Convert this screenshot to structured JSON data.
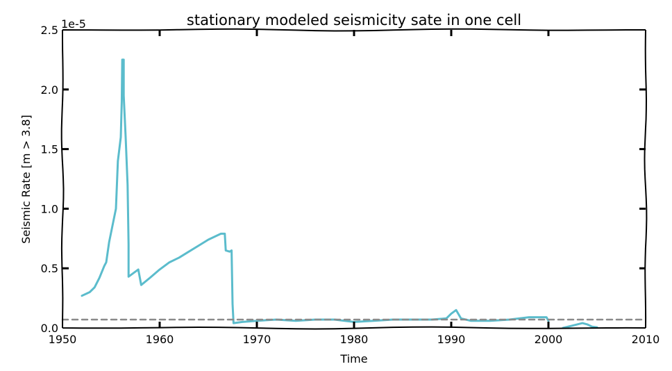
{
  "chart_data": {
    "type": "line",
    "title": "stationary modeled seismicity sate in one cell",
    "xlabel": "Time",
    "ylabel": "Seismic Rate [m > 3.8]",
    "y_offset_label": "1e-5",
    "xlim": [
      1950,
      2010
    ],
    "ylim": [
      0.0,
      2.5
    ],
    "x_ticks": [
      1950,
      1960,
      1970,
      1980,
      1990,
      2000,
      2010
    ],
    "y_ticks": [
      0.0,
      0.5,
      1.0,
      1.5,
      2.0,
      2.5
    ],
    "y_tick_labels": [
      "0.0",
      "0.5",
      "1.0",
      "1.5",
      "2.0",
      "2.5"
    ],
    "grid": false,
    "legend": "none",
    "series": [
      {
        "style": "solid",
        "color": "#5bbccc",
        "points": [
          [
            1952.0,
            0.27
          ],
          [
            1952.8,
            0.3
          ],
          [
            1953.3,
            0.34
          ],
          [
            1953.8,
            0.42
          ],
          [
            1954.3,
            0.52
          ],
          [
            1954.5,
            0.55
          ],
          [
            1954.8,
            0.72
          ],
          [
            1955.2,
            0.88
          ],
          [
            1955.5,
            1.0
          ],
          [
            1955.7,
            1.4
          ],
          [
            1956.0,
            1.6
          ],
          [
            1956.1,
            1.9
          ],
          [
            1956.15,
            2.25
          ],
          [
            1956.3,
            2.25
          ],
          [
            1956.3,
            1.95
          ],
          [
            1956.5,
            1.6
          ],
          [
            1956.7,
            1.2
          ],
          [
            1956.8,
            0.7
          ],
          [
            1956.8,
            0.43
          ],
          [
            1957.3,
            0.46
          ],
          [
            1957.8,
            0.49
          ],
          [
            1958.1,
            0.36
          ],
          [
            1959.0,
            0.42
          ],
          [
            1960.0,
            0.49
          ],
          [
            1961.0,
            0.55
          ],
          [
            1962.0,
            0.59
          ],
          [
            1963.0,
            0.64
          ],
          [
            1964.0,
            0.69
          ],
          [
            1965.0,
            0.74
          ],
          [
            1966.3,
            0.79
          ],
          [
            1966.7,
            0.79
          ],
          [
            1966.8,
            0.65
          ],
          [
            1967.2,
            0.64
          ],
          [
            1967.4,
            0.65
          ],
          [
            1967.5,
            0.2
          ],
          [
            1967.6,
            0.04
          ],
          [
            1968.5,
            0.05
          ],
          [
            1970.0,
            0.06
          ],
          [
            1972.0,
            0.07
          ],
          [
            1974.0,
            0.06
          ],
          [
            1976.0,
            0.07
          ],
          [
            1978.0,
            0.07
          ],
          [
            1980.0,
            0.05
          ],
          [
            1982.0,
            0.06
          ],
          [
            1984.0,
            0.07
          ],
          [
            1986.0,
            0.07
          ],
          [
            1988.0,
            0.07
          ],
          [
            1989.5,
            0.08
          ],
          [
            1990.0,
            0.12
          ],
          [
            1990.5,
            0.15
          ],
          [
            1991.0,
            0.08
          ],
          [
            1992.0,
            0.06
          ],
          [
            1994.0,
            0.06
          ],
          [
            1996.0,
            0.07
          ],
          [
            1998.0,
            0.09
          ],
          [
            1999.8,
            0.09
          ],
          [
            2000.0,
            0.06
          ]
        ]
      },
      {
        "style": "solid",
        "color": "#5bbccc",
        "points": [
          [
            2001.5,
            0.0
          ],
          [
            2002.5,
            0.02
          ],
          [
            2003.5,
            0.04
          ],
          [
            2004.0,
            0.03
          ],
          [
            2004.5,
            0.01
          ],
          [
            2005.0,
            0.005
          ]
        ]
      },
      {
        "style": "dashed",
        "color": "#8a8a8a",
        "points": [
          [
            1950,
            0.07
          ],
          [
            1955,
            0.07
          ],
          [
            1960,
            0.07
          ],
          [
            1965,
            0.07
          ],
          [
            1970,
            0.07
          ],
          [
            1975,
            0.07
          ],
          [
            1980,
            0.07
          ],
          [
            1985,
            0.07
          ],
          [
            1990,
            0.07
          ],
          [
            1995,
            0.07
          ],
          [
            2000,
            0.07
          ],
          [
            2005,
            0.07
          ],
          [
            2010,
            0.07
          ]
        ]
      }
    ]
  }
}
